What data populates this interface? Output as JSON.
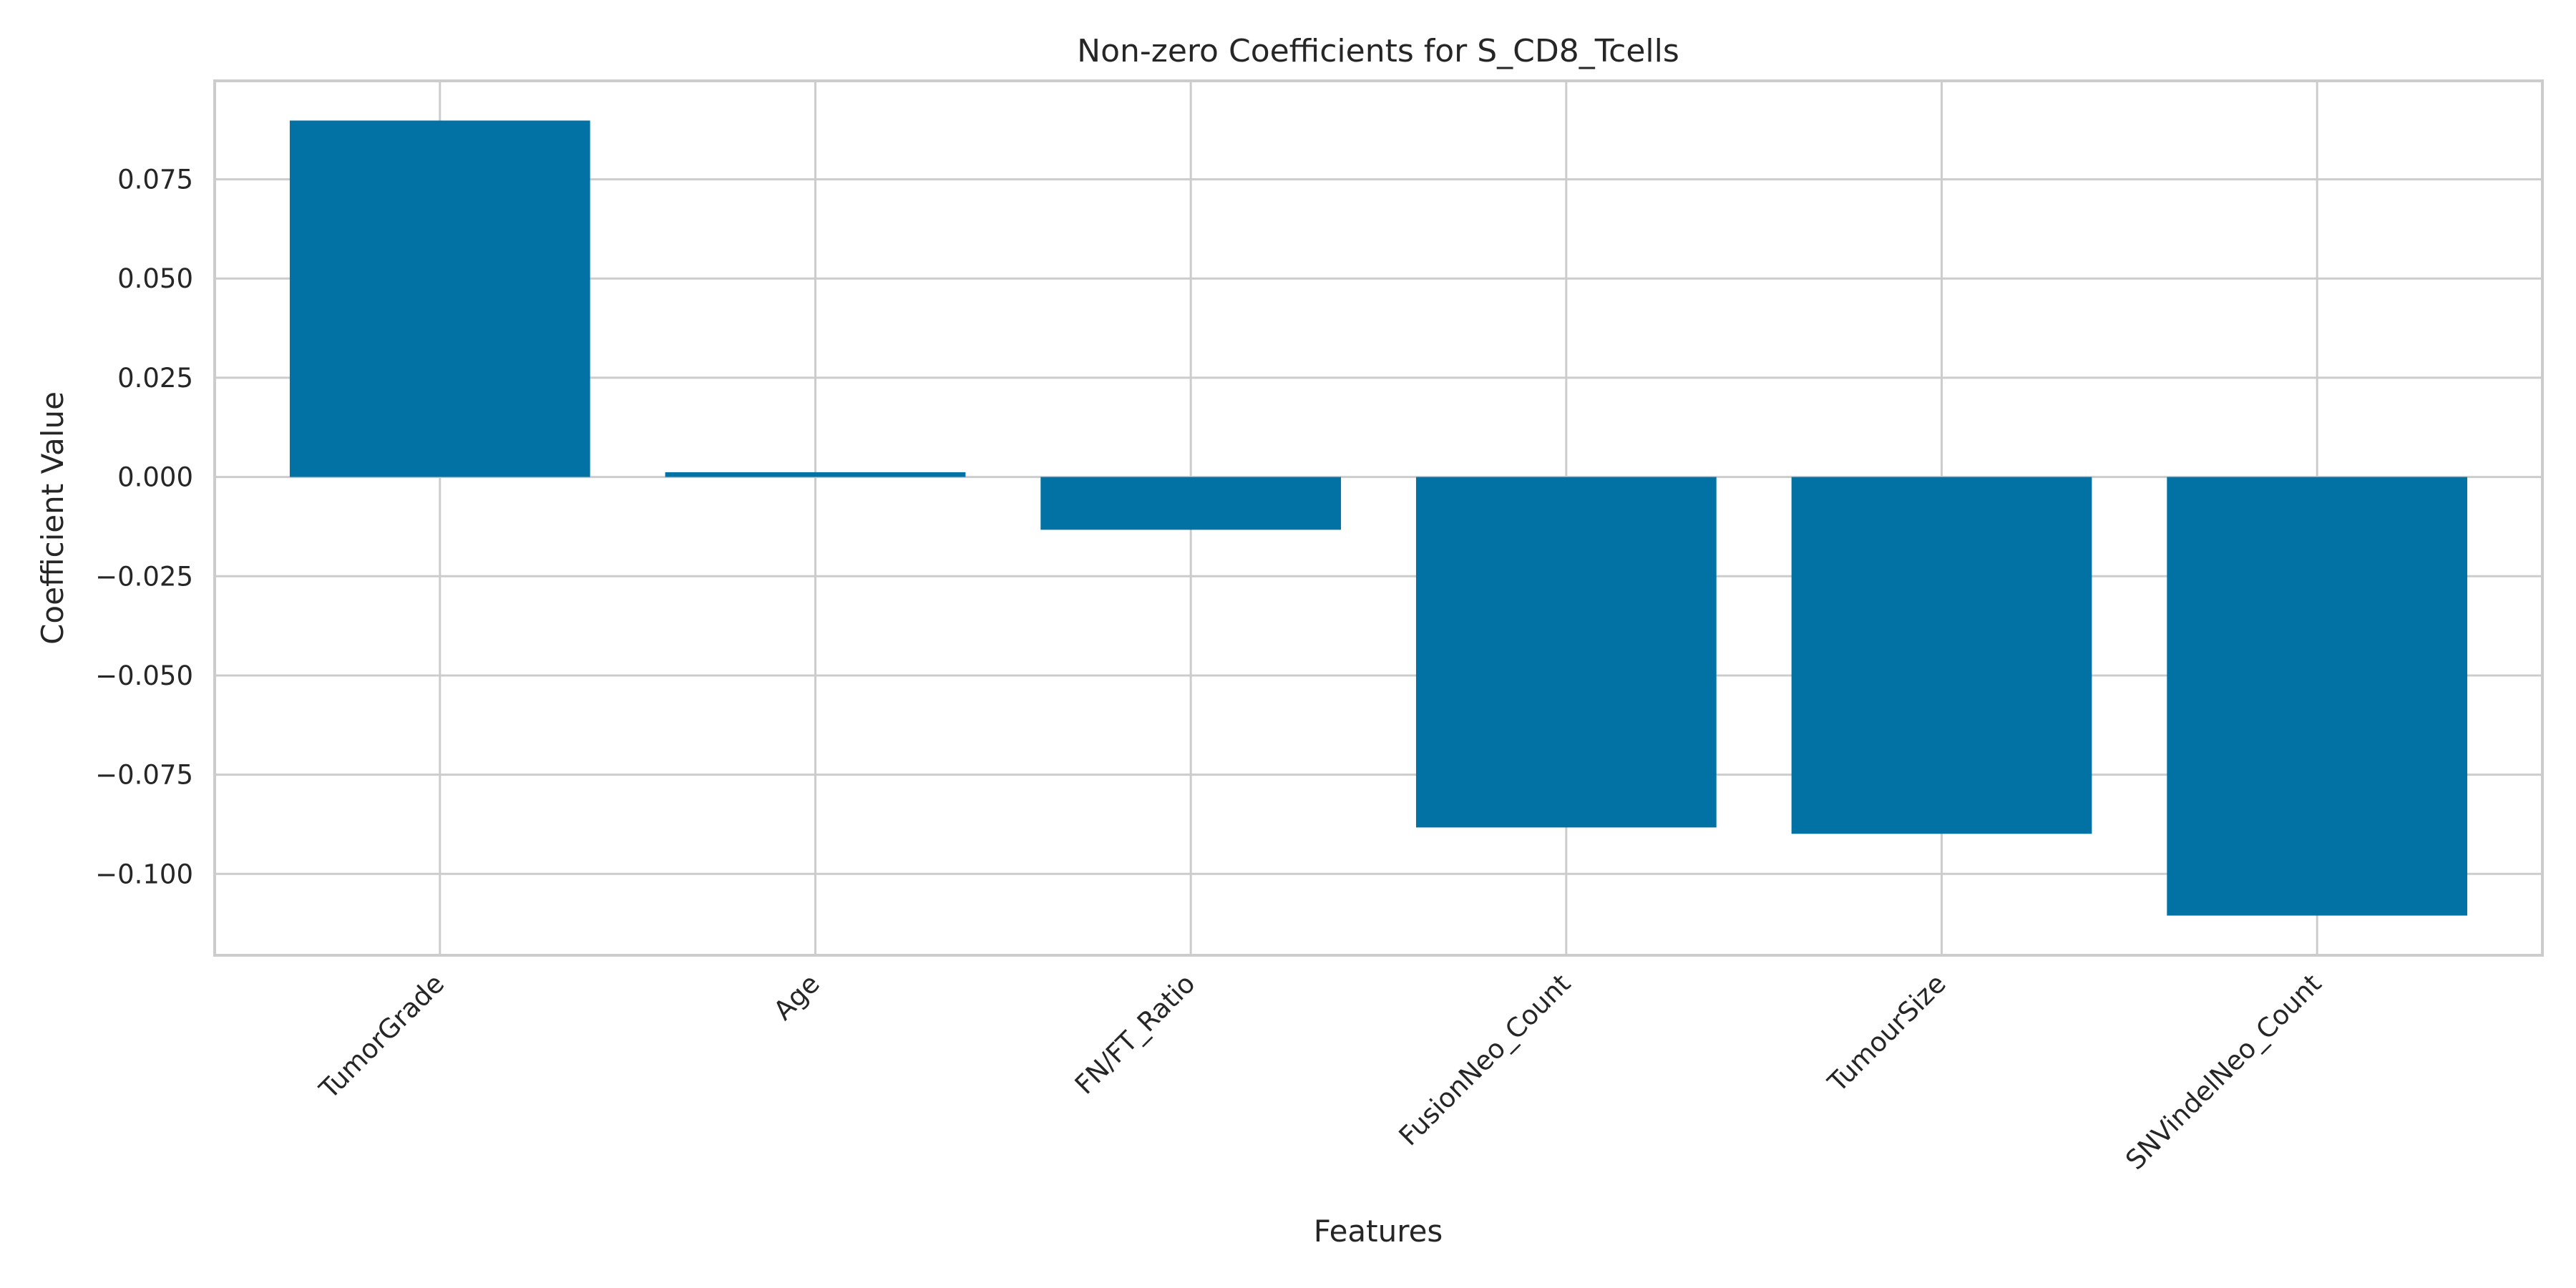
{
  "chart_data": {
    "type": "bar",
    "title": "Non-zero Coefficients for S_CD8_Tcells",
    "xlabel": "Features",
    "ylabel": "Coefficient Value",
    "categories": [
      "TumorGrade",
      "Age",
      "FN/FT_Ratio",
      "FusionNeo_Count",
      "TumourSize",
      "SNVindelNeo_Count"
    ],
    "values": [
      0.0898,
      0.0012,
      -0.0133,
      -0.0883,
      -0.0899,
      -0.1105
    ],
    "ylim": [
      -0.1205,
      0.0998
    ],
    "yticks": [
      0.075,
      0.05,
      0.025,
      0.0,
      -0.025,
      -0.05,
      -0.075,
      -0.1
    ],
    "ytick_labels": [
      "0.075",
      "0.050",
      "0.025",
      "0.000",
      "−0.025",
      "−0.050",
      "−0.075",
      "−0.100"
    ],
    "bar_color": "#0271a4",
    "grid": true,
    "legend": "none"
  }
}
